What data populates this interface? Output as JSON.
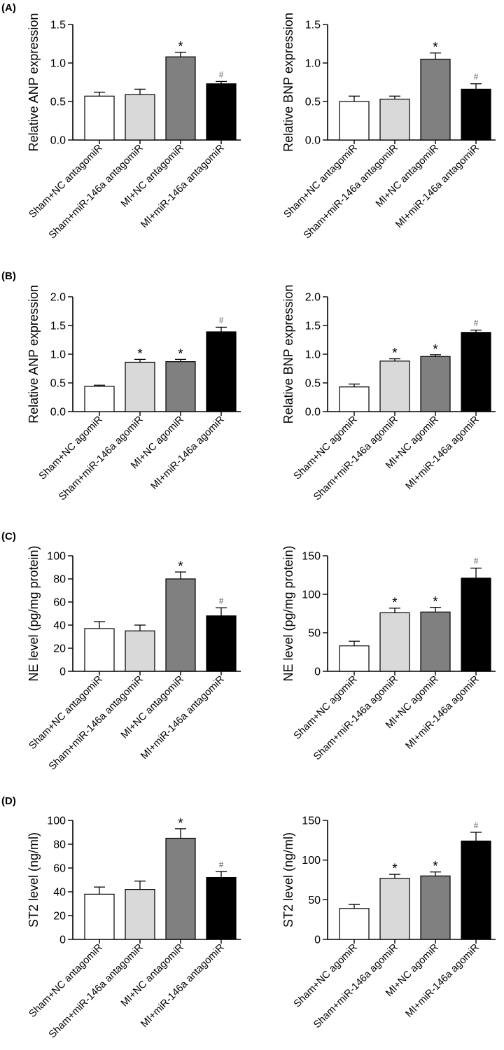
{
  "colors": [
    "#ffffff",
    "#d9d9d9",
    "#808080",
    "#000000"
  ],
  "chart_data": [
    {
      "panel": "(A)",
      "type": "bar",
      "ylabel": "Relative ANP expression",
      "ylim": [
        0,
        1.5
      ],
      "yticks": [
        "0.0",
        "0.5",
        "1.0",
        "1.5"
      ],
      "categories": [
        "Sham+NC antagomiR",
        "Sham+miR-146a antagomiR",
        "MI+NC antagomiR",
        "MI+miR-146a antagomiR"
      ],
      "values": [
        0.57,
        0.59,
        1.08,
        0.73
      ],
      "errors": [
        0.05,
        0.07,
        0.06,
        0.03
      ],
      "sig": [
        "",
        "",
        "*",
        "#"
      ]
    },
    {
      "panel": "",
      "type": "bar",
      "ylabel": "Relative BNP expression",
      "ylim": [
        0,
        1.5
      ],
      "yticks": [
        "0.0",
        "0.5",
        "1.0",
        "1.5"
      ],
      "categories": [
        "Sham+NC antagomiR",
        "Sham+miR-146a antagomiR",
        "MI+NC antagomiR",
        "MI+miR-146a antagomiR"
      ],
      "values": [
        0.5,
        0.53,
        1.05,
        0.66
      ],
      "errors": [
        0.07,
        0.04,
        0.08,
        0.07
      ],
      "sig": [
        "",
        "",
        "*",
        "#"
      ]
    },
    {
      "panel": "(B)",
      "type": "bar",
      "ylabel": "Relative ANP expression",
      "ylim": [
        0,
        2.0
      ],
      "yticks": [
        "0.0",
        "0.5",
        "1.0",
        "1.5",
        "2.0"
      ],
      "categories": [
        "Sham+NC agomiR",
        "Sham+miR-146a agomiR",
        "MI+NC agomiR",
        "MI+miR-146a agomiR"
      ],
      "values": [
        0.44,
        0.86,
        0.87,
        1.39
      ],
      "errors": [
        0.02,
        0.05,
        0.04,
        0.08
      ],
      "sig": [
        "",
        "*",
        "*",
        "#"
      ]
    },
    {
      "panel": "",
      "type": "bar",
      "ylabel": "Relative BNP expression",
      "ylim": [
        0,
        2.0
      ],
      "yticks": [
        "0.0",
        "0.5",
        "1.0",
        "1.5",
        "2.0"
      ],
      "categories": [
        "Sham+NC agomiR",
        "Sham+miR-146a agomiR",
        "MI+NC agomiR",
        "MI+miR-146a agomiR"
      ],
      "values": [
        0.43,
        0.88,
        0.96,
        1.38
      ],
      "errors": [
        0.05,
        0.04,
        0.03,
        0.04
      ],
      "sig": [
        "",
        "*",
        "*",
        "#"
      ]
    },
    {
      "panel": "(C)",
      "type": "bar",
      "ylabel": "NE level (pg/mg protein)",
      "ylim": [
        0,
        100
      ],
      "yticks": [
        "0",
        "20",
        "40",
        "60",
        "80",
        "100"
      ],
      "categories": [
        "Sham+NC antagomiR",
        "Sham+miR-146a antagomiR",
        "MI+NC antagomiR",
        "MI+miR-146a antagomiR"
      ],
      "values": [
        37,
        35,
        80,
        48
      ],
      "errors": [
        6,
        5,
        6,
        7
      ],
      "sig": [
        "",
        "",
        "*",
        "#"
      ]
    },
    {
      "panel": "",
      "type": "bar",
      "ylabel": "NE level (pg/mg protein)",
      "ylim": [
        0,
        150
      ],
      "yticks": [
        "0",
        "50",
        "100",
        "150"
      ],
      "categories": [
        "Sham+NC agomiR",
        "Sham+miR-146a agomiR",
        "MI+NC agomiR",
        "MI+miR-146a agomiR"
      ],
      "values": [
        33,
        76,
        77,
        121
      ],
      "errors": [
        6,
        6,
        6,
        13
      ],
      "sig": [
        "",
        "*",
        "*",
        "#"
      ]
    },
    {
      "panel": "(D)",
      "type": "bar",
      "ylabel": "ST2 level (ng/ml)",
      "ylim": [
        0,
        100
      ],
      "yticks": [
        "0",
        "20",
        "40",
        "60",
        "80",
        "100"
      ],
      "categories": [
        "Sham+NC antagomiR",
        "Sham+miR-146a antagomiR",
        "MI+NC antagomiR",
        "MI+miR-146a antagomiR"
      ],
      "values": [
        38,
        42,
        85,
        52
      ],
      "errors": [
        6,
        7,
        8,
        5
      ],
      "sig": [
        "",
        "",
        "*",
        "#"
      ]
    },
    {
      "panel": "",
      "type": "bar",
      "ylabel": "ST2 level (ng/ml)",
      "ylim": [
        0,
        150
      ],
      "yticks": [
        "0",
        "50",
        "100",
        "150"
      ],
      "categories": [
        "Sham+NC agomiR",
        "Sham+miR-146a agomiR",
        "MI+NC agomiR",
        "MI+miR-146a agomiR"
      ],
      "values": [
        39,
        77,
        80,
        124
      ],
      "errors": [
        5,
        5,
        5,
        11
      ],
      "sig": [
        "",
        "*",
        "*",
        "#"
      ]
    }
  ]
}
